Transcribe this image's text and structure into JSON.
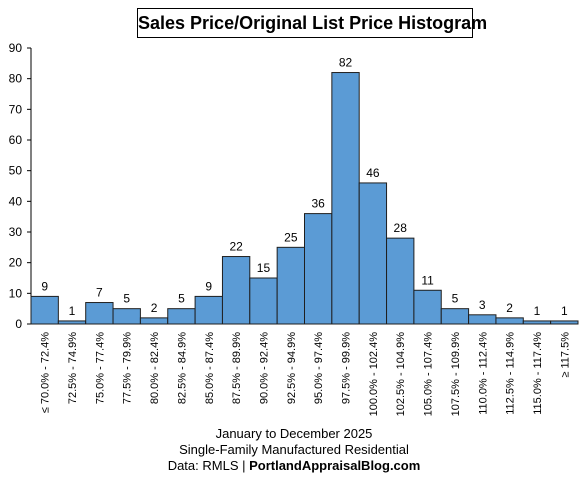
{
  "chart_data": {
    "type": "bar",
    "title": "Sales Price/Original List Price Histogram",
    "categories": [
      "≤ 70.0% - 72.4%",
      "72.5% - 74.9%",
      "75.0% - 77.4%",
      "77.5% - 79.9%",
      "80.0% - 82.4%",
      "82.5% - 84.9%",
      "85.0% - 87.4%",
      "87.5% - 89.9%",
      "90.0% - 92.4%",
      "92.5% - 94.9%",
      "95.0% - 97.4%",
      "97.5% - 99.9%",
      "100.0% - 102.4%",
      "102.5% - 104.9%",
      "105.0% - 107.4%",
      "107.5% - 109.9%",
      "110.0% - 112.4%",
      "112.5% - 114.9%",
      "115.0% - 117.4%",
      "≥ 117.5%"
    ],
    "values": [
      9,
      1,
      7,
      5,
      2,
      5,
      9,
      22,
      15,
      25,
      36,
      82,
      46,
      28,
      11,
      5,
      3,
      2,
      1,
      1
    ],
    "ylim": [
      0,
      90
    ],
    "yticks": [
      0,
      10,
      20,
      30,
      40,
      50,
      60,
      70,
      80,
      90
    ],
    "xlabel": "",
    "ylabel": "",
    "grid": false,
    "bar_color": "#5b9bd5",
    "bar_edge_color": "#1f1f1f"
  },
  "caption": {
    "line1": "January to December 2025",
    "line2": "Single-Family Manufactured Residential",
    "line3_prefix": "Data: RMLS | ",
    "line3_bold": "PortlandAppraisalBlog.com"
  }
}
